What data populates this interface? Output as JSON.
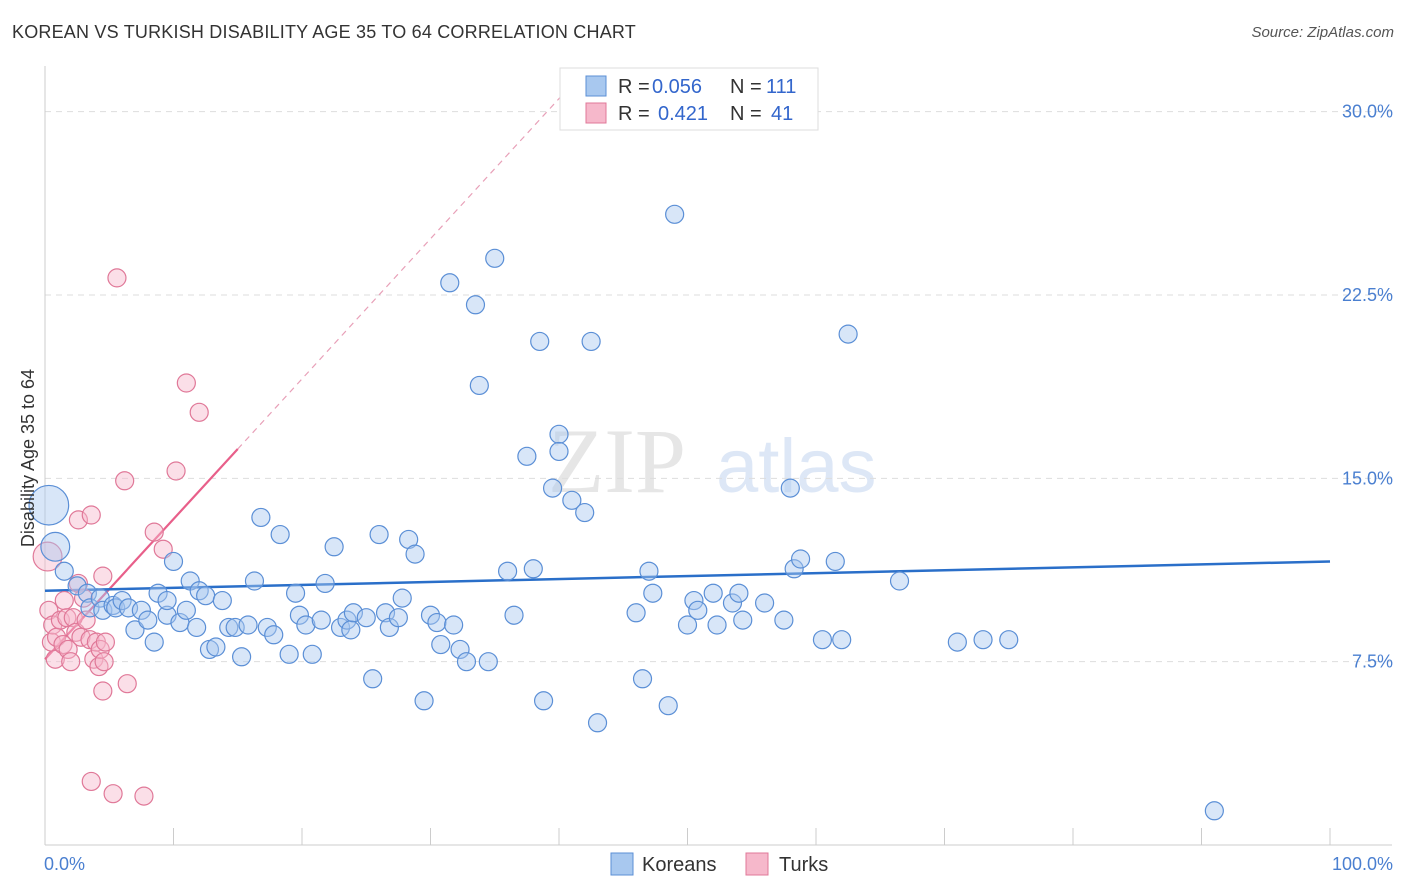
{
  "title": "KOREAN VS TURKISH DISABILITY AGE 35 TO 64 CORRELATION CHART",
  "source": "Source: ZipAtlas.com",
  "watermark": {
    "zip": "ZIP",
    "atlas": "atlas"
  },
  "colors": {
    "korean_fill": "#a8c8ef",
    "korean_stroke": "#5b8fd6",
    "korean_line": "#2a6fc9",
    "turk_fill": "#f6b8cb",
    "turk_stroke": "#e07898",
    "turk_line": "#e85f8a",
    "grid": "#dddddd",
    "axis_text": "#4a7fd0"
  },
  "legend": {
    "rows": [
      {
        "r_label": "R =",
        "r_value": "0.056",
        "n_label": "N =",
        "n_value": "111"
      },
      {
        "r_label": "R =",
        "r_value": "0.421",
        "n_label": "N =",
        "n_value": "41"
      }
    ]
  },
  "bottom_legend": [
    "Koreans",
    "Turks"
  ],
  "chart_data": {
    "type": "scatter",
    "title": "KOREAN VS TURKISH DISABILITY AGE 35 TO 64 CORRELATION CHART",
    "xlabel": "",
    "ylabel": "Disability Age 35 to 64",
    "xlim": [
      0,
      100
    ],
    "ylim": [
      0,
      31.5
    ],
    "x_tick_labels": [
      "0.0%",
      "100.0%"
    ],
    "y_ticks": [
      7.5,
      15.0,
      22.5,
      30.0
    ],
    "y_tick_labels": [
      "7.5%",
      "15.0%",
      "22.5%",
      "30.0%"
    ],
    "series": [
      {
        "name": "Koreans",
        "r": 0.056,
        "n": 111,
        "trend": {
          "x": [
            0,
            100
          ],
          "y": [
            10.4,
            11.6
          ]
        },
        "points": [
          {
            "x": 0.3,
            "y": 13.9,
            "s": 2.2
          },
          {
            "x": 0.8,
            "y": 12.2,
            "s": 1.6
          },
          {
            "x": 1.5,
            "y": 11.2
          },
          {
            "x": 2.5,
            "y": 10.6
          },
          {
            "x": 3.3,
            "y": 10.3
          },
          {
            "x": 3.5,
            "y": 9.7
          },
          {
            "x": 4.3,
            "y": 10.1
          },
          {
            "x": 4.5,
            "y": 9.6
          },
          {
            "x": 5.3,
            "y": 9.8
          },
          {
            "x": 5.5,
            "y": 9.7
          },
          {
            "x": 6.0,
            "y": 10.0
          },
          {
            "x": 6.5,
            "y": 9.7
          },
          {
            "x": 7.0,
            "y": 8.8
          },
          {
            "x": 7.5,
            "y": 9.6
          },
          {
            "x": 8.0,
            "y": 9.2
          },
          {
            "x": 8.5,
            "y": 8.3
          },
          {
            "x": 8.8,
            "y": 10.3
          },
          {
            "x": 9.5,
            "y": 9.4
          },
          {
            "x": 9.5,
            "y": 10.0
          },
          {
            "x": 10.0,
            "y": 11.6
          },
          {
            "x": 10.5,
            "y": 9.1
          },
          {
            "x": 11.0,
            "y": 9.6
          },
          {
            "x": 11.3,
            "y": 10.8
          },
          {
            "x": 11.8,
            "y": 8.9
          },
          {
            "x": 12.0,
            "y": 10.4
          },
          {
            "x": 12.5,
            "y": 10.2
          },
          {
            "x": 12.8,
            "y": 8.0
          },
          {
            "x": 13.3,
            "y": 8.1
          },
          {
            "x": 13.8,
            "y": 10.0
          },
          {
            "x": 14.3,
            "y": 8.9
          },
          {
            "x": 14.8,
            "y": 8.9
          },
          {
            "x": 15.3,
            "y": 7.7
          },
          {
            "x": 15.8,
            "y": 9.0
          },
          {
            "x": 16.3,
            "y": 10.8
          },
          {
            "x": 16.8,
            "y": 13.4
          },
          {
            "x": 17.3,
            "y": 8.9
          },
          {
            "x": 17.8,
            "y": 8.6
          },
          {
            "x": 18.3,
            "y": 12.7
          },
          {
            "x": 19.0,
            "y": 7.8
          },
          {
            "x": 19.5,
            "y": 10.3
          },
          {
            "x": 19.8,
            "y": 9.4
          },
          {
            "x": 20.3,
            "y": 9.0
          },
          {
            "x": 20.8,
            "y": 7.8
          },
          {
            "x": 21.5,
            "y": 9.2
          },
          {
            "x": 21.8,
            "y": 10.7
          },
          {
            "x": 22.5,
            "y": 12.2
          },
          {
            "x": 23.0,
            "y": 8.9
          },
          {
            "x": 23.5,
            "y": 9.2
          },
          {
            "x": 23.8,
            "y": 8.8
          },
          {
            "x": 24.0,
            "y": 9.5
          },
          {
            "x": 25.0,
            "y": 9.3
          },
          {
            "x": 25.5,
            "y": 6.8
          },
          {
            "x": 26.0,
            "y": 12.7
          },
          {
            "x": 26.5,
            "y": 9.5
          },
          {
            "x": 26.8,
            "y": 8.9
          },
          {
            "x": 27.5,
            "y": 9.3
          },
          {
            "x": 27.8,
            "y": 10.1
          },
          {
            "x": 28.3,
            "y": 12.5
          },
          {
            "x": 28.8,
            "y": 11.9
          },
          {
            "x": 29.5,
            "y": 5.9
          },
          {
            "x": 30.0,
            "y": 9.4
          },
          {
            "x": 30.5,
            "y": 9.1
          },
          {
            "x": 30.8,
            "y": 8.2
          },
          {
            "x": 31.5,
            "y": 23.0
          },
          {
            "x": 31.8,
            "y": 9.0
          },
          {
            "x": 32.3,
            "y": 8.0
          },
          {
            "x": 32.8,
            "y": 7.5
          },
          {
            "x": 33.5,
            "y": 22.1
          },
          {
            "x": 33.8,
            "y": 18.8
          },
          {
            "x": 34.5,
            "y": 7.5
          },
          {
            "x": 35.0,
            "y": 24.0
          },
          {
            "x": 36.0,
            "y": 11.2
          },
          {
            "x": 36.5,
            "y": 9.4
          },
          {
            "x": 37.5,
            "y": 15.9
          },
          {
            "x": 38.0,
            "y": 11.3
          },
          {
            "x": 38.5,
            "y": 20.6
          },
          {
            "x": 38.8,
            "y": 5.9
          },
          {
            "x": 39.5,
            "y": 14.6
          },
          {
            "x": 40.0,
            "y": 16.8
          },
          {
            "x": 40.0,
            "y": 16.1
          },
          {
            "x": 41.0,
            "y": 14.1
          },
          {
            "x": 42.0,
            "y": 13.6
          },
          {
            "x": 42.5,
            "y": 20.6
          },
          {
            "x": 43.0,
            "y": 5.0
          },
          {
            "x": 46.0,
            "y": 9.5
          },
          {
            "x": 46.5,
            "y": 6.8
          },
          {
            "x": 47.0,
            "y": 11.2
          },
          {
            "x": 47.3,
            "y": 10.3
          },
          {
            "x": 48.5,
            "y": 5.7
          },
          {
            "x": 49.0,
            "y": 25.8
          },
          {
            "x": 50.0,
            "y": 9.0
          },
          {
            "x": 50.5,
            "y": 10.0
          },
          {
            "x": 50.8,
            "y": 9.6
          },
          {
            "x": 52.0,
            "y": 10.3
          },
          {
            "x": 52.3,
            "y": 9.0
          },
          {
            "x": 53.5,
            "y": 9.9
          },
          {
            "x": 54.0,
            "y": 10.3
          },
          {
            "x": 54.3,
            "y": 9.2
          },
          {
            "x": 56.0,
            "y": 9.9
          },
          {
            "x": 57.5,
            "y": 9.2
          },
          {
            "x": 58.0,
            "y": 14.6
          },
          {
            "x": 58.3,
            "y": 11.3
          },
          {
            "x": 58.8,
            "y": 11.7
          },
          {
            "x": 60.5,
            "y": 8.4
          },
          {
            "x": 61.5,
            "y": 11.6
          },
          {
            "x": 62.0,
            "y": 8.4
          },
          {
            "x": 62.5,
            "y": 20.9
          },
          {
            "x": 66.5,
            "y": 10.8
          },
          {
            "x": 71.0,
            "y": 8.3
          },
          {
            "x": 73.0,
            "y": 8.4
          },
          {
            "x": 75.0,
            "y": 8.4
          },
          {
            "x": 91.0,
            "y": 1.4
          }
        ]
      },
      {
        "name": "Turks",
        "r": 0.421,
        "n": 41,
        "trend": {
          "x": [
            0,
            15
          ],
          "y": [
            7.6,
            16.2
          ]
        },
        "points": [
          {
            "x": 0.2,
            "y": 11.8,
            "s": 1.6
          },
          {
            "x": 0.3,
            "y": 9.6
          },
          {
            "x": 0.5,
            "y": 8.3
          },
          {
            "x": 0.6,
            "y": 9.0
          },
          {
            "x": 0.8,
            "y": 7.6
          },
          {
            "x": 0.9,
            "y": 8.5
          },
          {
            "x": 1.2,
            "y": 9.2
          },
          {
            "x": 1.4,
            "y": 8.2
          },
          {
            "x": 1.5,
            "y": 10.0
          },
          {
            "x": 1.7,
            "y": 9.3
          },
          {
            "x": 1.8,
            "y": 8.0
          },
          {
            "x": 2.0,
            "y": 7.5
          },
          {
            "x": 2.2,
            "y": 9.3
          },
          {
            "x": 2.4,
            "y": 8.7
          },
          {
            "x": 2.6,
            "y": 10.7
          },
          {
            "x": 2.6,
            "y": 13.3
          },
          {
            "x": 2.8,
            "y": 8.5
          },
          {
            "x": 3.0,
            "y": 10.1
          },
          {
            "x": 3.2,
            "y": 9.2
          },
          {
            "x": 3.5,
            "y": 8.4
          },
          {
            "x": 3.6,
            "y": 2.6
          },
          {
            "x": 3.8,
            "y": 7.6
          },
          {
            "x": 3.6,
            "y": 13.5
          },
          {
            "x": 4.0,
            "y": 8.3
          },
          {
            "x": 4.2,
            "y": 7.3
          },
          {
            "x": 4.3,
            "y": 8.0
          },
          {
            "x": 4.5,
            "y": 11.0
          },
          {
            "x": 4.6,
            "y": 7.5
          },
          {
            "x": 4.5,
            "y": 6.3
          },
          {
            "x": 4.7,
            "y": 8.3
          },
          {
            "x": 5.3,
            "y": 2.1
          },
          {
            "x": 5.6,
            "y": 23.2
          },
          {
            "x": 6.2,
            "y": 14.9
          },
          {
            "x": 6.4,
            "y": 6.6
          },
          {
            "x": 7.7,
            "y": 2.0
          },
          {
            "x": 8.5,
            "y": 12.8
          },
          {
            "x": 9.2,
            "y": 12.1
          },
          {
            "x": 10.2,
            "y": 15.3
          },
          {
            "x": 11.0,
            "y": 18.9
          },
          {
            "x": 12.0,
            "y": 17.7
          }
        ]
      }
    ]
  }
}
